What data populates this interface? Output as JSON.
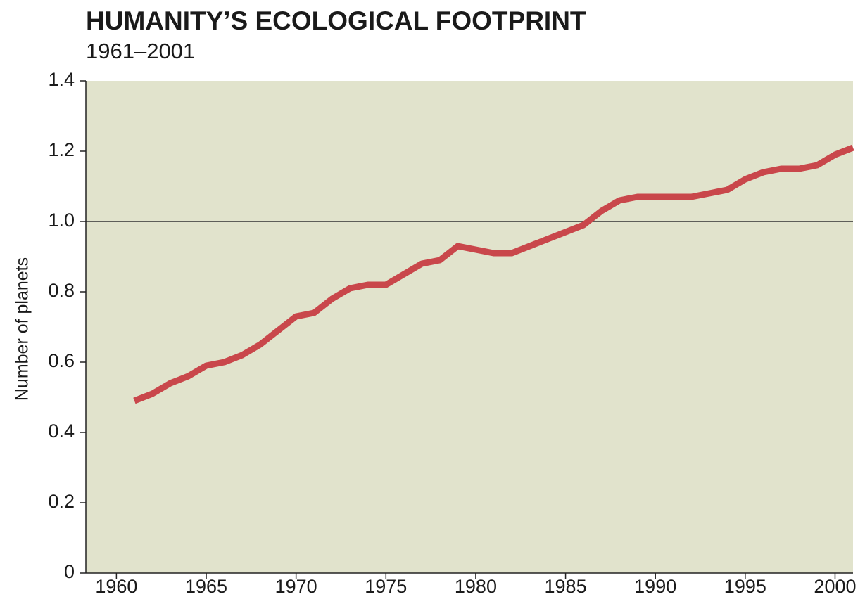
{
  "chart_data": {
    "type": "line",
    "title": "HUMANITY’S ECOLOGICAL FOOTPRINT",
    "subtitle": "1961–2001",
    "y_label": "Number of planets",
    "x": [
      1961,
      1962,
      1963,
      1964,
      1965,
      1966,
      1967,
      1968,
      1969,
      1970,
      1971,
      1972,
      1973,
      1974,
      1975,
      1976,
      1977,
      1978,
      1979,
      1980,
      1981,
      1982,
      1983,
      1984,
      1985,
      1986,
      1987,
      1988,
      1989,
      1990,
      1991,
      1992,
      1993,
      1994,
      1995,
      1996,
      1997,
      1998,
      1999,
      2000,
      2001
    ],
    "series": [
      {
        "color": "#c9474b",
        "values": [
          0.49,
          0.51,
          0.54,
          0.56,
          0.59,
          0.6,
          0.62,
          0.65,
          0.69,
          0.73,
          0.74,
          0.78,
          0.81,
          0.82,
          0.82,
          0.85,
          0.88,
          0.89,
          0.93,
          0.92,
          0.91,
          0.91,
          0.93,
          0.95,
          0.97,
          0.99,
          1.03,
          1.06,
          1.07,
          1.07,
          1.07,
          1.07,
          1.08,
          1.09,
          1.12,
          1.14,
          1.15,
          1.15,
          1.16,
          1.19,
          1.21
        ]
      }
    ],
    "xlim": [
      1958.3,
      2001
    ],
    "xticks": [
      1960,
      1965,
      1970,
      1975,
      1980,
      1985,
      1990,
      1995,
      2000
    ],
    "ylim": [
      0,
      1.4
    ],
    "yticks": [
      0,
      0.2,
      0.4,
      0.6,
      0.8,
      {
        "value": 1,
        "label": "1.0"
      },
      1.2,
      1.4
    ],
    "reference_y": 1,
    "background": "#e1e3cc"
  }
}
